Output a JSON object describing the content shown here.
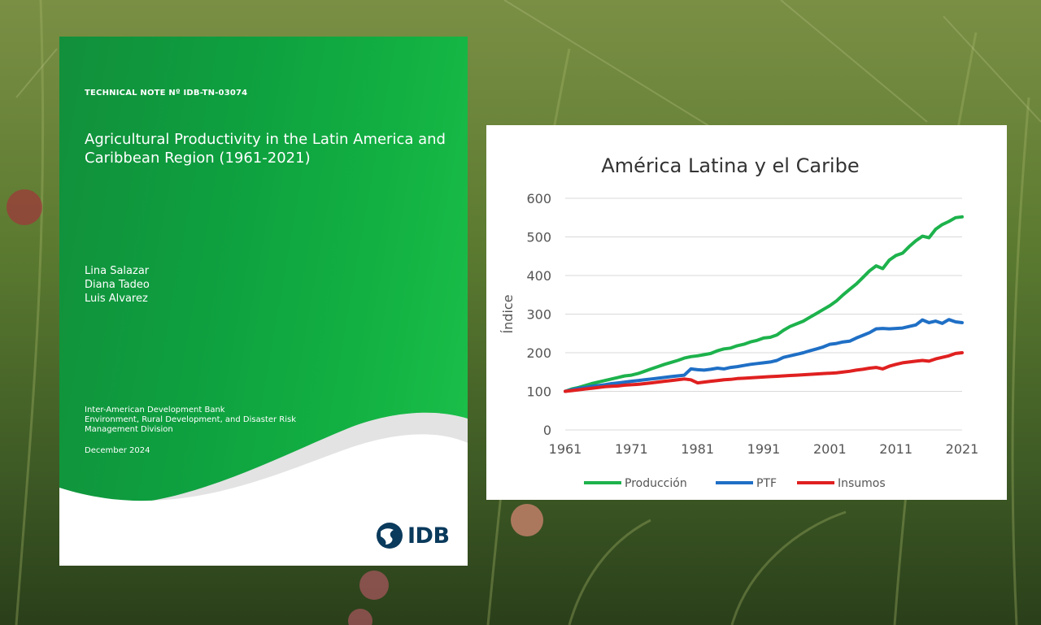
{
  "cover": {
    "technical_note": "TECHNICAL NOTE Nº IDB-TN-03074",
    "title": "Agricultural Productivity in the Latin America and Caribbean Region (1961-2021)",
    "authors": [
      "Lina Salazar",
      "Diana Tadeo",
      "Luis Alvarez"
    ],
    "organization": [
      "Inter-American Development Bank",
      "Environment, Rural Development, and Disaster Risk Management Division"
    ],
    "date": "December 2024",
    "logo_text": "IDB",
    "colors": {
      "green": "#0e9e3f",
      "logo_blue": "#0a3a5c"
    }
  },
  "chart_data": {
    "type": "line",
    "title": "América Latina y el Caribe",
    "xlabel": "",
    "ylabel": "Índice",
    "xlim": [
      1961,
      2021
    ],
    "ylim": [
      0,
      600
    ],
    "yticks": [
      0,
      100,
      200,
      300,
      400,
      500,
      600
    ],
    "xticks": [
      1961,
      1971,
      1981,
      1991,
      2001,
      2011,
      2021
    ],
    "grid": true,
    "legend_position": "bottom",
    "series": [
      {
        "name": "Producción",
        "color": "#1db24c",
        "points": [
          [
            1961,
            100
          ],
          [
            1962,
            106
          ],
          [
            1963,
            110
          ],
          [
            1964,
            115
          ],
          [
            1965,
            120
          ],
          [
            1966,
            124
          ],
          [
            1967,
            128
          ],
          [
            1968,
            132
          ],
          [
            1969,
            136
          ],
          [
            1970,
            140
          ],
          [
            1971,
            142
          ],
          [
            1972,
            146
          ],
          [
            1973,
            152
          ],
          [
            1974,
            158
          ],
          [
            1975,
            164
          ],
          [
            1976,
            170
          ],
          [
            1977,
            175
          ],
          [
            1978,
            180
          ],
          [
            1979,
            186
          ],
          [
            1980,
            190
          ],
          [
            1981,
            192
          ],
          [
            1982,
            195
          ],
          [
            1983,
            198
          ],
          [
            1984,
            205
          ],
          [
            1985,
            210
          ],
          [
            1986,
            212
          ],
          [
            1987,
            218
          ],
          [
            1988,
            222
          ],
          [
            1989,
            228
          ],
          [
            1990,
            232
          ],
          [
            1991,
            238
          ],
          [
            1992,
            240
          ],
          [
            1993,
            246
          ],
          [
            1994,
            258
          ],
          [
            1995,
            268
          ],
          [
            1996,
            275
          ],
          [
            1997,
            282
          ],
          [
            1998,
            292
          ],
          [
            1999,
            302
          ],
          [
            2000,
            312
          ],
          [
            2001,
            322
          ],
          [
            2002,
            334
          ],
          [
            2003,
            350
          ],
          [
            2004,
            364
          ],
          [
            2005,
            378
          ],
          [
            2006,
            395
          ],
          [
            2007,
            412
          ],
          [
            2008,
            425
          ],
          [
            2009,
            418
          ],
          [
            2010,
            440
          ],
          [
            2011,
            452
          ],
          [
            2012,
            458
          ],
          [
            2013,
            475
          ],
          [
            2014,
            490
          ],
          [
            2015,
            502
          ],
          [
            2016,
            498
          ],
          [
            2017,
            520
          ],
          [
            2018,
            532
          ],
          [
            2019,
            540
          ],
          [
            2020,
            550
          ],
          [
            2021,
            552
          ]
        ]
      },
      {
        "name": "PTF",
        "color": "#1f6fc5",
        "points": [
          [
            1961,
            100
          ],
          [
            1962,
            104
          ],
          [
            1963,
            108
          ],
          [
            1964,
            110
          ],
          [
            1965,
            113
          ],
          [
            1966,
            115
          ],
          [
            1967,
            117
          ],
          [
            1968,
            120
          ],
          [
            1969,
            122
          ],
          [
            1970,
            124
          ],
          [
            1971,
            126
          ],
          [
            1972,
            128
          ],
          [
            1973,
            130
          ],
          [
            1974,
            132
          ],
          [
            1975,
            134
          ],
          [
            1976,
            136
          ],
          [
            1977,
            138
          ],
          [
            1978,
            140
          ],
          [
            1979,
            142
          ],
          [
            1980,
            158
          ],
          [
            1981,
            156
          ],
          [
            1982,
            155
          ],
          [
            1983,
            157
          ],
          [
            1984,
            160
          ],
          [
            1985,
            158
          ],
          [
            1986,
            162
          ],
          [
            1987,
            164
          ],
          [
            1988,
            167
          ],
          [
            1989,
            170
          ],
          [
            1990,
            172
          ],
          [
            1991,
            174
          ],
          [
            1992,
            176
          ],
          [
            1993,
            180
          ],
          [
            1994,
            188
          ],
          [
            1995,
            192
          ],
          [
            1996,
            196
          ],
          [
            1997,
            200
          ],
          [
            1998,
            205
          ],
          [
            1999,
            210
          ],
          [
            2000,
            215
          ],
          [
            2001,
            222
          ],
          [
            2002,
            224
          ],
          [
            2003,
            228
          ],
          [
            2004,
            230
          ],
          [
            2005,
            238
          ],
          [
            2006,
            245
          ],
          [
            2007,
            252
          ],
          [
            2008,
            262
          ],
          [
            2009,
            263
          ],
          [
            2010,
            262
          ],
          [
            2011,
            263
          ],
          [
            2012,
            264
          ],
          [
            2013,
            268
          ],
          [
            2014,
            272
          ],
          [
            2015,
            285
          ],
          [
            2016,
            278
          ],
          [
            2017,
            282
          ],
          [
            2018,
            276
          ],
          [
            2019,
            286
          ],
          [
            2020,
            280
          ],
          [
            2021,
            278
          ]
        ]
      },
      {
        "name": "Insumos",
        "color": "#e02020",
        "points": [
          [
            1961,
            100
          ],
          [
            1962,
            102
          ],
          [
            1963,
            104
          ],
          [
            1964,
            106
          ],
          [
            1965,
            108
          ],
          [
            1966,
            110
          ],
          [
            1967,
            112
          ],
          [
            1968,
            113
          ],
          [
            1969,
            114
          ],
          [
            1970,
            116
          ],
          [
            1971,
            117
          ],
          [
            1972,
            118
          ],
          [
            1973,
            120
          ],
          [
            1974,
            122
          ],
          [
            1975,
            124
          ],
          [
            1976,
            126
          ],
          [
            1977,
            128
          ],
          [
            1978,
            130
          ],
          [
            1979,
            132
          ],
          [
            1980,
            130
          ],
          [
            1981,
            122
          ],
          [
            1982,
            124
          ],
          [
            1983,
            126
          ],
          [
            1984,
            128
          ],
          [
            1985,
            130
          ],
          [
            1986,
            131
          ],
          [
            1987,
            133
          ],
          [
            1988,
            134
          ],
          [
            1989,
            135
          ],
          [
            1990,
            136
          ],
          [
            1991,
            137
          ],
          [
            1992,
            138
          ],
          [
            1993,
            139
          ],
          [
            1994,
            140
          ],
          [
            1995,
            141
          ],
          [
            1996,
            142
          ],
          [
            1997,
            143
          ],
          [
            1998,
            144
          ],
          [
            1999,
            145
          ],
          [
            2000,
            146
          ],
          [
            2001,
            147
          ],
          [
            2002,
            148
          ],
          [
            2003,
            150
          ],
          [
            2004,
            152
          ],
          [
            2005,
            155
          ],
          [
            2006,
            157
          ],
          [
            2007,
            160
          ],
          [
            2008,
            162
          ],
          [
            2009,
            158
          ],
          [
            2010,
            165
          ],
          [
            2011,
            170
          ],
          [
            2012,
            174
          ],
          [
            2013,
            176
          ],
          [
            2014,
            178
          ],
          [
            2015,
            180
          ],
          [
            2016,
            178
          ],
          [
            2017,
            184
          ],
          [
            2018,
            188
          ],
          [
            2019,
            192
          ],
          [
            2020,
            198
          ],
          [
            2021,
            200
          ]
        ]
      }
    ]
  }
}
